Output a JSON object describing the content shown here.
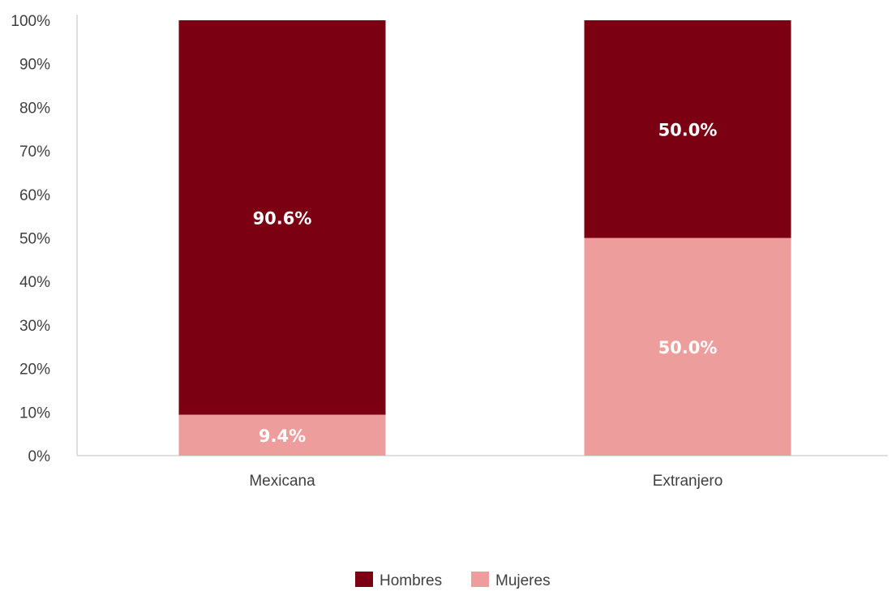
{
  "chart_data": {
    "type": "bar",
    "stacked": true,
    "title": "",
    "xlabel": "",
    "ylabel": "",
    "ylim": [
      0,
      100
    ],
    "y_ticks": [
      "0%",
      "10%",
      "20%",
      "30%",
      "40%",
      "50%",
      "60%",
      "70%",
      "80%",
      "90%",
      "100%"
    ],
    "grid": false,
    "legend_position": "bottom",
    "categories": [
      "Mexicana",
      "Extranjero"
    ],
    "series": [
      {
        "name": "Mujeres",
        "color": "#ED9D9C",
        "values": [
          9.4,
          50.0
        ],
        "labels": [
          "9.4%",
          "50.0%"
        ]
      },
      {
        "name": "Hombres",
        "color": "#7A0012",
        "values": [
          90.6,
          50.0
        ],
        "labels": [
          "90.6%",
          "50.0%"
        ]
      }
    ],
    "legend_order": [
      "Hombres",
      "Mujeres"
    ]
  }
}
